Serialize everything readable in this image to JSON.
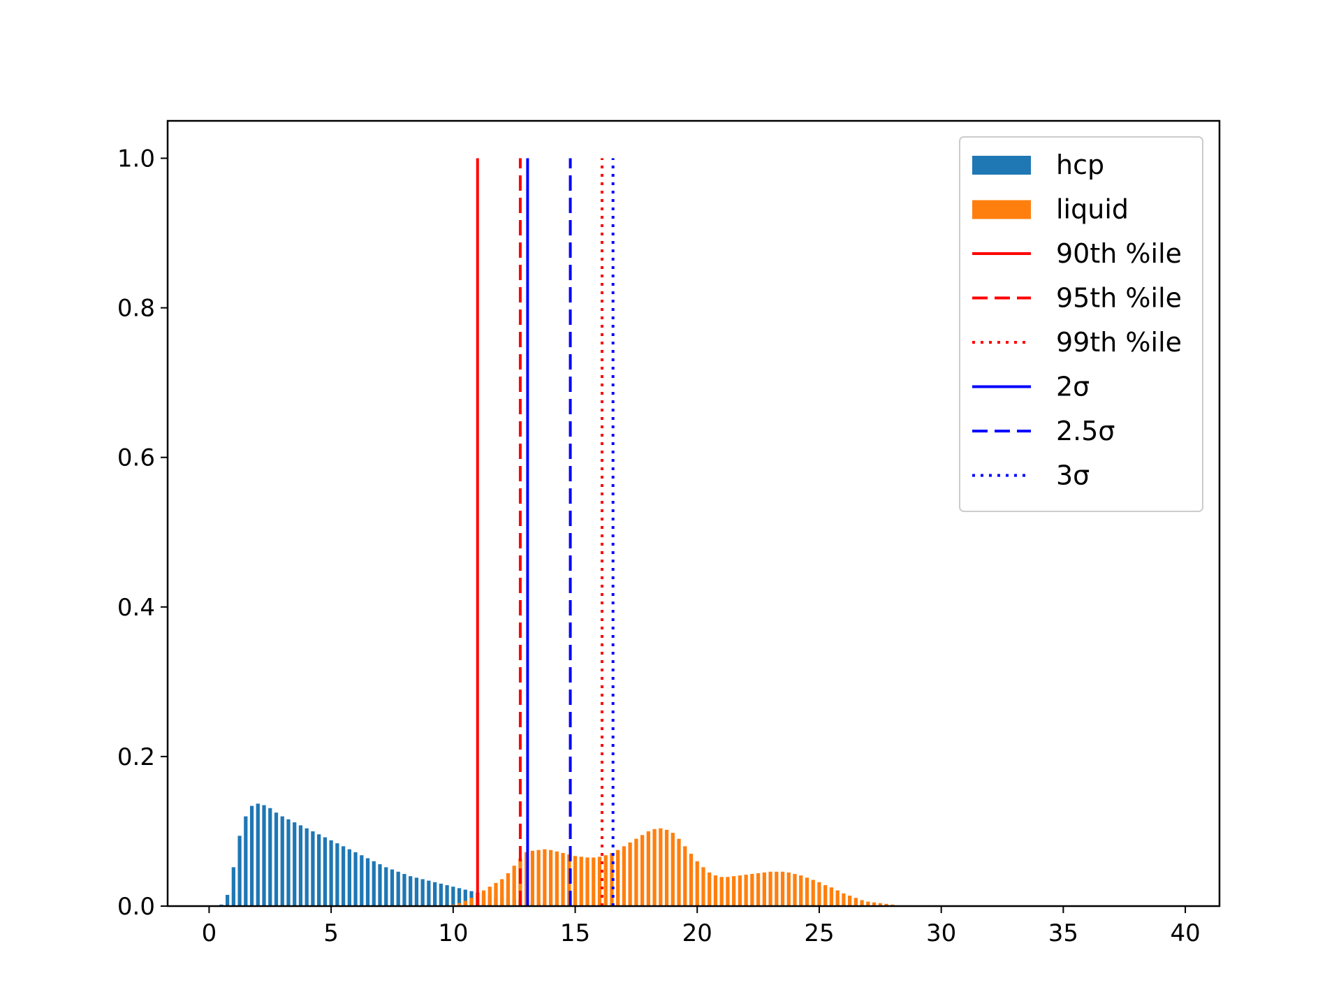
{
  "chart_data": {
    "type": "bar",
    "title": "",
    "xlabel": "",
    "ylabel": "",
    "xlim": [
      -1.7,
      41.4
    ],
    "ylim": [
      0,
      1.05
    ],
    "xticks": [
      0,
      5,
      10,
      15,
      20,
      25,
      30,
      35,
      40
    ],
    "yticks": [
      0.0,
      0.2,
      0.4,
      0.6,
      0.8,
      1.0
    ],
    "xtick_labels": [
      "0",
      "5",
      "10",
      "15",
      "20",
      "25",
      "30",
      "35",
      "40"
    ],
    "ytick_labels": [
      "0.0",
      "0.2",
      "0.4",
      "0.6",
      "0.8",
      "1.0"
    ],
    "grid": false,
    "legend_position": "upper right",
    "series": [
      {
        "name": "hcp",
        "kind": "bar",
        "color": "#1f77b4",
        "x": [
          0.5,
          0.75,
          1.0,
          1.25,
          1.5,
          1.75,
          2.0,
          2.25,
          2.5,
          2.75,
          3.0,
          3.25,
          3.5,
          3.75,
          4.0,
          4.25,
          4.5,
          4.75,
          5.0,
          5.25,
          5.5,
          5.75,
          6.0,
          6.25,
          6.5,
          6.75,
          7.0,
          7.25,
          7.5,
          7.75,
          8.0,
          8.25,
          8.5,
          8.75,
          9.0,
          9.25,
          9.5,
          9.75,
          10.0,
          10.25,
          10.5,
          10.75,
          11.0,
          11.25,
          11.5,
          11.75,
          12.0,
          12.25,
          12.5,
          12.75,
          13.0,
          13.25,
          13.5,
          13.75,
          14.0,
          14.25,
          14.5,
          14.75,
          15.0,
          15.25,
          15.5,
          15.75,
          16.0,
          16.25,
          16.5,
          16.75,
          17.0,
          17.25,
          17.5
        ],
        "values": [
          0.002,
          0.015,
          0.052,
          0.094,
          0.12,
          0.134,
          0.137,
          0.135,
          0.131,
          0.125,
          0.12,
          0.116,
          0.112,
          0.108,
          0.104,
          0.1,
          0.096,
          0.092,
          0.088,
          0.084,
          0.08,
          0.076,
          0.072,
          0.068,
          0.064,
          0.06,
          0.056,
          0.052,
          0.049,
          0.046,
          0.043,
          0.04,
          0.038,
          0.036,
          0.034,
          0.032,
          0.03,
          0.028,
          0.026,
          0.024,
          0.022,
          0.02,
          0.018,
          0.016,
          0.014,
          0.012,
          0.011,
          0.01,
          0.009,
          0.008,
          0.007,
          0.006,
          0.005,
          0.004,
          0.0035,
          0.003,
          0.0025,
          0.002,
          0.0018,
          0.0015,
          0.0012,
          0.001,
          0.001,
          0.001,
          0.001,
          0.001,
          0.001,
          0.001,
          0.001
        ]
      },
      {
        "name": "liquid",
        "kind": "bar",
        "color": "#ff7f0e",
        "x": [
          10.0,
          10.25,
          10.5,
          10.75,
          11.0,
          11.25,
          11.5,
          11.75,
          12.0,
          12.25,
          12.5,
          12.75,
          13.0,
          13.25,
          13.5,
          13.75,
          14.0,
          14.25,
          14.5,
          14.75,
          15.0,
          15.25,
          15.5,
          15.75,
          16.0,
          16.25,
          16.5,
          16.75,
          17.0,
          17.25,
          17.5,
          17.75,
          18.0,
          18.25,
          18.5,
          18.75,
          19.0,
          19.25,
          19.5,
          19.75,
          20.0,
          20.25,
          20.5,
          20.75,
          21.0,
          21.25,
          21.5,
          21.75,
          22.0,
          22.25,
          22.5,
          22.75,
          23.0,
          23.25,
          23.5,
          23.75,
          24.0,
          24.25,
          24.5,
          24.75,
          25.0,
          25.25,
          25.5,
          25.75,
          26.0,
          26.25,
          26.5,
          26.75,
          27.0,
          27.25,
          27.5,
          27.75,
          28.0,
          28.25,
          28.5,
          28.75,
          29.0,
          29.25,
          29.5,
          29.75,
          30.0,
          30.25,
          30.5,
          30.75,
          31.0
        ],
        "values": [
          0.002,
          0.004,
          0.007,
          0.011,
          0.016,
          0.021,
          0.026,
          0.031,
          0.036,
          0.044,
          0.054,
          0.064,
          0.072,
          0.074,
          0.075,
          0.076,
          0.075,
          0.073,
          0.071,
          0.069,
          0.067,
          0.066,
          0.065,
          0.065,
          0.066,
          0.068,
          0.071,
          0.075,
          0.08,
          0.085,
          0.09,
          0.095,
          0.1,
          0.103,
          0.104,
          0.102,
          0.098,
          0.09,
          0.08,
          0.07,
          0.06,
          0.052,
          0.045,
          0.041,
          0.039,
          0.039,
          0.04,
          0.041,
          0.042,
          0.043,
          0.044,
          0.045,
          0.046,
          0.046,
          0.046,
          0.045,
          0.043,
          0.041,
          0.038,
          0.035,
          0.032,
          0.028,
          0.025,
          0.021,
          0.017,
          0.014,
          0.011,
          0.008,
          0.006,
          0.005,
          0.004,
          0.003,
          0.002,
          0.001,
          0.001,
          0.001,
          0.001,
          0.001,
          0.001,
          0.001,
          0.001,
          0.001,
          0.001,
          0.001,
          0.001
        ]
      },
      {
        "name": "90th %ile",
        "kind": "vline",
        "x": 11.0,
        "ymin": 0,
        "ymax": 1.0,
        "color": "#ff0000",
        "style": "solid"
      },
      {
        "name": "95th %ile",
        "kind": "vline",
        "x": 12.75,
        "ymin": 0,
        "ymax": 1.0,
        "color": "#ff0000",
        "style": "dashed"
      },
      {
        "name": "99th %ile",
        "kind": "vline",
        "x": 16.1,
        "ymin": 0,
        "ymax": 1.0,
        "color": "#ff0000",
        "style": "dotted"
      },
      {
        "name": "2σ",
        "kind": "vline",
        "x": 13.05,
        "ymin": 0,
        "ymax": 1.0,
        "color": "#0000ff",
        "style": "solid"
      },
      {
        "name": "2.5σ",
        "kind": "vline",
        "x": 14.8,
        "ymin": 0,
        "ymax": 1.0,
        "color": "#0000ff",
        "style": "dashed"
      },
      {
        "name": "3σ",
        "kind": "vline",
        "x": 16.55,
        "ymin": 0,
        "ymax": 1.0,
        "color": "#0000ff",
        "style": "dotted"
      }
    ]
  }
}
